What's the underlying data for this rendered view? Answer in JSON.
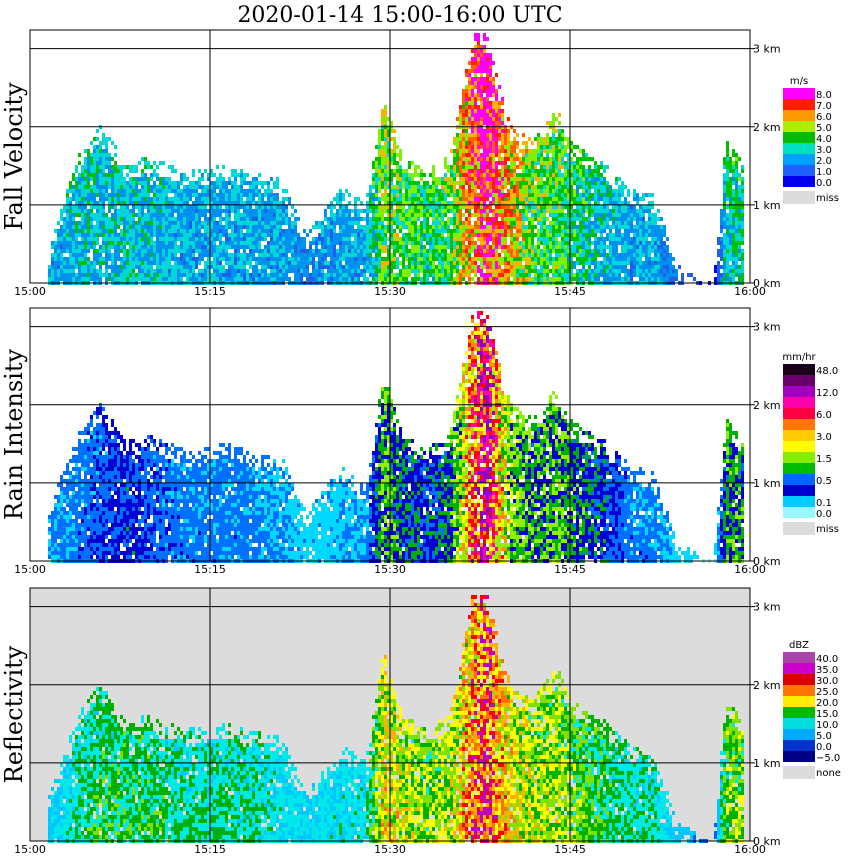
{
  "chart_data": {
    "type": "heatmap",
    "title": "2020-01-14   15:00-16:00 UTC",
    "x_ticks": [
      "15:00",
      "15:15",
      "15:30",
      "15:45",
      "16:00"
    ],
    "x_range_minutes": [
      0,
      60
    ],
    "y_range_km": [
      0,
      3.2
    ],
    "y_ticks": [
      "0 km",
      "1 km",
      "2 km",
      "3 km"
    ],
    "grid": true,
    "panels": [
      {
        "id": "fall-velocity",
        "label": "Fall Velocity",
        "units": "m/s",
        "background": "#ffffff",
        "palette": [
          "#0000ff",
          "#2060e8",
          "#0090f0",
          "#00d8d8",
          "#00c000",
          "#80f000",
          "#ffb000",
          "#ff6000",
          "#ff1e00",
          "#ff00ff"
        ],
        "legend": [
          {
            "label": "8.0",
            "color": "#ff00ff"
          },
          {
            "label": "7.0",
            "color": "#ff1e00"
          },
          {
            "label": "6.0",
            "color": "#ff9900"
          },
          {
            "label": "5.0",
            "color": "#aaee00"
          },
          {
            "label": "4.0",
            "color": "#00bb00"
          },
          {
            "label": "3.0",
            "color": "#00e0c0"
          },
          {
            "label": "2.0",
            "color": "#00a0ff"
          },
          {
            "label": "1.0",
            "color": "#2060ff"
          },
          {
            "label": "0.0",
            "color": "#0000ee"
          }
        ],
        "missing_label": "miss",
        "missing_color": "#dcdcdc",
        "echo_profile": [
          {
            "minute": 1.5,
            "top_km": 0.35,
            "intensity": 0.3
          },
          {
            "minute": 4,
            "top_km": 1.6,
            "intensity": 0.35
          },
          {
            "minute": 6,
            "top_km": 2.0,
            "intensity": 0.35
          },
          {
            "minute": 8,
            "top_km": 1.5,
            "intensity": 0.35
          },
          {
            "minute": 10,
            "top_km": 1.6,
            "intensity": 0.35
          },
          {
            "minute": 13,
            "top_km": 1.4,
            "intensity": 0.3
          },
          {
            "minute": 16,
            "top_km": 1.5,
            "intensity": 0.3
          },
          {
            "minute": 18,
            "top_km": 1.4,
            "intensity": 0.3
          },
          {
            "minute": 21,
            "top_km": 1.3,
            "intensity": 0.3
          },
          {
            "minute": 23,
            "top_km": 0.6,
            "intensity": 0.25
          },
          {
            "minute": 26,
            "top_km": 1.2,
            "intensity": 0.3
          },
          {
            "minute": 28,
            "top_km": 1.0,
            "intensity": 0.3
          },
          {
            "minute": 29.5,
            "top_km": 2.4,
            "intensity": 0.55
          },
          {
            "minute": 31,
            "top_km": 1.6,
            "intensity": 0.5
          },
          {
            "minute": 33,
            "top_km": 1.4,
            "intensity": 0.45
          },
          {
            "minute": 35,
            "top_km": 1.6,
            "intensity": 0.5
          },
          {
            "minute": 37,
            "top_km": 3.2,
            "intensity": 0.8
          },
          {
            "minute": 38,
            "top_km": 3.2,
            "intensity": 0.95
          },
          {
            "minute": 40,
            "top_km": 2.0,
            "intensity": 0.7
          },
          {
            "minute": 42,
            "top_km": 1.8,
            "intensity": 0.5
          },
          {
            "minute": 44,
            "top_km": 2.2,
            "intensity": 0.5
          },
          {
            "minute": 45,
            "top_km": 1.8,
            "intensity": 0.45
          },
          {
            "minute": 48,
            "top_km": 1.5,
            "intensity": 0.35
          },
          {
            "minute": 50,
            "top_km": 1.2,
            "intensity": 0.3
          },
          {
            "minute": 52,
            "top_km": 1.1,
            "intensity": 0.3
          },
          {
            "minute": 54,
            "top_km": 0.2,
            "intensity": 0.2
          },
          {
            "minute": 57,
            "top_km": 0.0,
            "intensity": 0.0
          },
          {
            "minute": 58,
            "top_km": 1.8,
            "intensity": 0.4
          },
          {
            "minute": 59.5,
            "top_km": 1.5,
            "intensity": 0.4
          }
        ]
      },
      {
        "id": "rain-intensity",
        "label": "Rain Intensity",
        "units": "mm/hr",
        "background": "#ffffff",
        "palette": [
          "#7ff5ff",
          "#00d8ff",
          "#0070ff",
          "#0000d0",
          "#00b000",
          "#90f000",
          "#ffff00",
          "#ff9000",
          "#ff0000",
          "#ff00aa",
          "#9000c0"
        ],
        "legend": [
          {
            "label": "48.0",
            "color": "#1a001a"
          },
          {
            "label": "",
            "color": "#6a006a"
          },
          {
            "label": "12.0",
            "color": "#a000c0"
          },
          {
            "label": "",
            "color": "#ff00aa"
          },
          {
            "label": "6.0",
            "color": "#ff0044"
          },
          {
            "label": "",
            "color": "#ff7700"
          },
          {
            "label": "3.0",
            "color": "#ffcc00"
          },
          {
            "label": "",
            "color": "#ffff00"
          },
          {
            "label": "1.5",
            "color": "#88ee00"
          },
          {
            "label": "",
            "color": "#00bb00"
          },
          {
            "label": "0.5",
            "color": "#0066ff"
          },
          {
            "label": "",
            "color": "#0000cc"
          },
          {
            "label": "0.1",
            "color": "#00ccff"
          },
          {
            "label": "0.0",
            "color": "#99f8ff"
          }
        ],
        "missing_label": "miss",
        "missing_color": "#dcdcdc",
        "echo_profile": [
          {
            "minute": 1.5,
            "top_km": 0.6,
            "intensity": 0.15
          },
          {
            "minute": 4,
            "top_km": 1.6,
            "intensity": 0.2
          },
          {
            "minute": 6,
            "top_km": 2.0,
            "intensity": 0.25
          },
          {
            "minute": 8,
            "top_km": 1.5,
            "intensity": 0.3
          },
          {
            "minute": 10,
            "top_km": 1.6,
            "intensity": 0.25
          },
          {
            "minute": 13,
            "top_km": 1.4,
            "intensity": 0.2
          },
          {
            "minute": 16,
            "top_km": 1.5,
            "intensity": 0.2
          },
          {
            "minute": 18,
            "top_km": 1.4,
            "intensity": 0.2
          },
          {
            "minute": 21,
            "top_km": 1.3,
            "intensity": 0.15
          },
          {
            "minute": 23,
            "top_km": 0.6,
            "intensity": 0.12
          },
          {
            "minute": 26,
            "top_km": 1.2,
            "intensity": 0.15
          },
          {
            "minute": 28,
            "top_km": 0.9,
            "intensity": 0.15
          },
          {
            "minute": 29.5,
            "top_km": 2.4,
            "intensity": 0.45
          },
          {
            "minute": 31,
            "top_km": 1.6,
            "intensity": 0.35
          },
          {
            "minute": 33,
            "top_km": 1.4,
            "intensity": 0.3
          },
          {
            "minute": 35,
            "top_km": 1.6,
            "intensity": 0.35
          },
          {
            "minute": 37,
            "top_km": 3.2,
            "intensity": 0.8
          },
          {
            "minute": 38,
            "top_km": 3.2,
            "intensity": 0.95
          },
          {
            "minute": 40,
            "top_km": 2.0,
            "intensity": 0.5
          },
          {
            "minute": 42,
            "top_km": 1.8,
            "intensity": 0.4
          },
          {
            "minute": 44,
            "top_km": 2.2,
            "intensity": 0.45
          },
          {
            "minute": 45,
            "top_km": 1.8,
            "intensity": 0.4
          },
          {
            "minute": 48,
            "top_km": 1.5,
            "intensity": 0.3
          },
          {
            "minute": 50,
            "top_km": 1.2,
            "intensity": 0.2
          },
          {
            "minute": 52,
            "top_km": 1.1,
            "intensity": 0.2
          },
          {
            "minute": 54,
            "top_km": 0.2,
            "intensity": 0.1
          },
          {
            "minute": 57,
            "top_km": 0.0,
            "intensity": 0.0
          },
          {
            "minute": 58,
            "top_km": 1.8,
            "intensity": 0.4
          },
          {
            "minute": 59.5,
            "top_km": 1.5,
            "intensity": 0.4
          }
        ]
      },
      {
        "id": "reflectivity",
        "label": "Reflectivity",
        "units": "dBZ",
        "background": "#dcdcdc",
        "palette": [
          "#0000a0",
          "#0060ff",
          "#00c8ff",
          "#00e8e8",
          "#00b000",
          "#80e000",
          "#ffff00",
          "#ffb000",
          "#ff7000",
          "#ff0000",
          "#c000c0"
        ],
        "legend": [
          {
            "label": "40.0",
            "color": "#aa44aa"
          },
          {
            "label": "35.0",
            "color": "#cc00cc"
          },
          {
            "label": "30.0",
            "color": "#dd0000"
          },
          {
            "label": "25.0",
            "color": "#ff7700"
          },
          {
            "label": "20.0",
            "color": "#ffee00"
          },
          {
            "label": "15.0",
            "color": "#00bb00"
          },
          {
            "label": "10.0",
            "color": "#00dddd"
          },
          {
            "label": "5.0",
            "color": "#00aaff"
          },
          {
            "label": "0.0",
            "color": "#0033cc"
          },
          {
            "label": "−5.0",
            "color": "#000088"
          }
        ],
        "missing_label": "none",
        "missing_color": "#dcdcdc",
        "echo_profile": [
          {
            "minute": 1.5,
            "top_km": 0.5,
            "intensity": 0.15
          },
          {
            "minute": 4,
            "top_km": 1.6,
            "intensity": 0.3
          },
          {
            "minute": 6,
            "top_km": 2.0,
            "intensity": 0.35
          },
          {
            "minute": 8,
            "top_km": 1.5,
            "intensity": 0.35
          },
          {
            "minute": 10,
            "top_km": 1.6,
            "intensity": 0.35
          },
          {
            "minute": 13,
            "top_km": 1.4,
            "intensity": 0.3
          },
          {
            "minute": 16,
            "top_km": 1.5,
            "intensity": 0.3
          },
          {
            "minute": 18,
            "top_km": 1.4,
            "intensity": 0.3
          },
          {
            "minute": 21,
            "top_km": 1.3,
            "intensity": 0.25
          },
          {
            "minute": 23,
            "top_km": 0.6,
            "intensity": 0.2
          },
          {
            "minute": 26,
            "top_km": 1.2,
            "intensity": 0.25
          },
          {
            "minute": 28,
            "top_km": 1.0,
            "intensity": 0.25
          },
          {
            "minute": 29.5,
            "top_km": 2.4,
            "intensity": 0.6
          },
          {
            "minute": 31,
            "top_km": 1.6,
            "intensity": 0.55
          },
          {
            "minute": 33,
            "top_km": 1.4,
            "intensity": 0.45
          },
          {
            "minute": 35,
            "top_km": 1.6,
            "intensity": 0.5
          },
          {
            "minute": 37,
            "top_km": 3.2,
            "intensity": 0.8
          },
          {
            "minute": 38,
            "top_km": 3.2,
            "intensity": 0.9
          },
          {
            "minute": 40,
            "top_km": 2.0,
            "intensity": 0.6
          },
          {
            "minute": 42,
            "top_km": 1.8,
            "intensity": 0.5
          },
          {
            "minute": 44,
            "top_km": 2.2,
            "intensity": 0.5
          },
          {
            "minute": 45,
            "top_km": 1.8,
            "intensity": 0.45
          },
          {
            "minute": 48,
            "top_km": 1.5,
            "intensity": 0.35
          },
          {
            "minute": 50,
            "top_km": 1.2,
            "intensity": 0.3
          },
          {
            "minute": 52,
            "top_km": 1.1,
            "intensity": 0.3
          },
          {
            "minute": 54,
            "top_km": 0.2,
            "intensity": 0.15
          },
          {
            "minute": 57,
            "top_km": 0.0,
            "intensity": 0.0
          },
          {
            "minute": 58,
            "top_km": 1.8,
            "intensity": 0.45
          },
          {
            "minute": 59.5,
            "top_km": 1.5,
            "intensity": 0.45
          }
        ]
      }
    ]
  }
}
